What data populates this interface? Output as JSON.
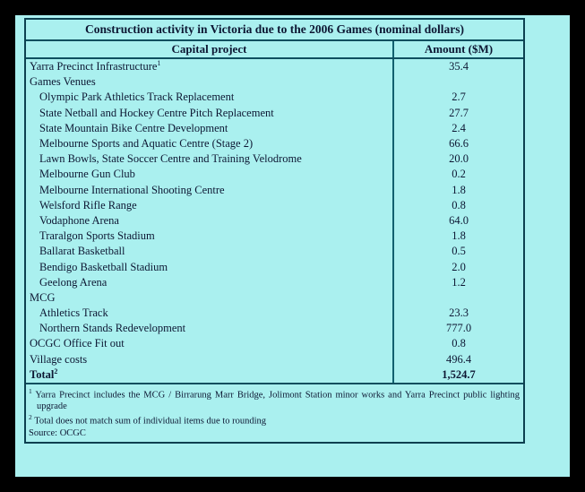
{
  "title": "Construction activity in Victoria due to the 2006 Games (nominal dollars)",
  "columns": {
    "project": "Capital project",
    "amount": "Amount ($M)"
  },
  "rows": [
    {
      "label": "Yarra Precinct Infrastructure",
      "sup": "1",
      "amount": "35.4",
      "indent": 0,
      "bold": false
    },
    {
      "label": "Games Venues",
      "sup": "",
      "amount": "",
      "indent": 0,
      "bold": false
    },
    {
      "label": "Olympic Park Athletics Track Replacement",
      "sup": "",
      "amount": "2.7",
      "indent": 1,
      "bold": false
    },
    {
      "label": "State Netball and Hockey Centre Pitch Replacement",
      "sup": "",
      "amount": "27.7",
      "indent": 1,
      "bold": false
    },
    {
      "label": "State Mountain Bike Centre Development",
      "sup": "",
      "amount": "2.4",
      "indent": 1,
      "bold": false
    },
    {
      "label": "Melbourne Sports and Aquatic Centre (Stage 2)",
      "sup": "",
      "amount": "66.6",
      "indent": 1,
      "bold": false
    },
    {
      "label": "Lawn Bowls, State Soccer Centre and Training Velodrome",
      "sup": "",
      "amount": "20.0",
      "indent": 1,
      "bold": false
    },
    {
      "label": "Melbourne Gun Club",
      "sup": "",
      "amount": "0.2",
      "indent": 1,
      "bold": false
    },
    {
      "label": "Melbourne International Shooting Centre",
      "sup": "",
      "amount": "1.8",
      "indent": 1,
      "bold": false
    },
    {
      "label": "Welsford Rifle Range",
      "sup": "",
      "amount": "0.8",
      "indent": 1,
      "bold": false
    },
    {
      "label": "Vodaphone Arena",
      "sup": "",
      "amount": "64.0",
      "indent": 1,
      "bold": false
    },
    {
      "label": "Traralgon Sports Stadium",
      "sup": "",
      "amount": "1.8",
      "indent": 1,
      "bold": false
    },
    {
      "label": "Ballarat Basketball",
      "sup": "",
      "amount": "0.5",
      "indent": 1,
      "bold": false
    },
    {
      "label": "Bendigo Basketball Stadium",
      "sup": "",
      "amount": "2.0",
      "indent": 1,
      "bold": false
    },
    {
      "label": "Geelong Arena",
      "sup": "",
      "amount": "1.2",
      "indent": 1,
      "bold": false
    },
    {
      "label": "MCG",
      "sup": "",
      "amount": "",
      "indent": 0,
      "bold": false
    },
    {
      "label": "Athletics Track",
      "sup": "",
      "amount": "23.3",
      "indent": 1,
      "bold": false
    },
    {
      "label": "Northern Stands Redevelopment",
      "sup": "",
      "amount": "777.0",
      "indent": 1,
      "bold": false
    },
    {
      "label": "OCGC Office Fit out",
      "sup": "",
      "amount": "0.8",
      "indent": 0,
      "bold": false
    },
    {
      "label": "Village costs",
      "sup": "",
      "amount": "496.4",
      "indent": 0,
      "bold": false
    },
    {
      "label": "Total",
      "sup": "2",
      "amount": "1,524.7",
      "indent": 0,
      "bold": true
    }
  ],
  "footnotes": [
    {
      "marker": "1",
      "text": "Yarra Precinct includes the MCG / Birrarung Marr Bridge, Jolimont Station minor works and Yarra Precinct public lighting upgrade"
    },
    {
      "marker": "2",
      "text": "Total does not match sum of individual items due to rounding"
    }
  ],
  "source": "Source: OCGC",
  "colors": {
    "page_background": "#aaf0ef",
    "frame": "#000000",
    "table_border": "#0c4050",
    "column_divider": "#11606f",
    "text": "#0d1733"
  }
}
